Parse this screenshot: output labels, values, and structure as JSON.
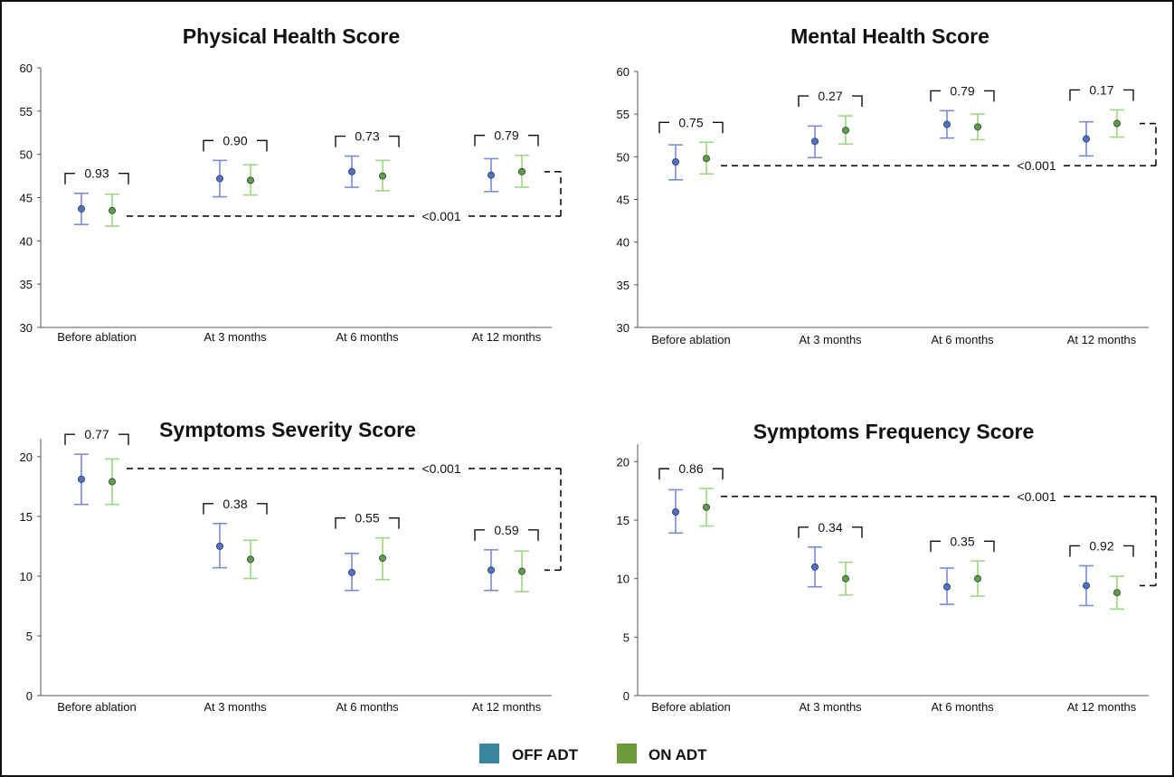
{
  "legend": [
    {
      "name": "OFF ADT",
      "color": "#3a86a0"
    },
    {
      "name": "ON ADT",
      "color": "#6e9a3c"
    }
  ],
  "colors": {
    "off_err": "#7a8cd8",
    "on_err": "#9fd683",
    "off_dot": "#4f72c4",
    "on_dot": "#5f9f3c",
    "axis": "#555555",
    "text": "#111111"
  },
  "chart_data": [
    {
      "type": "scatter",
      "title": "Physical Health Score",
      "categories": [
        "Before ablation",
        "At 3 months",
        "At 6 months",
        "At 12 months"
      ],
      "ylim": [
        30,
        60
      ],
      "yticks": [
        30,
        35,
        40,
        45,
        50,
        55,
        60
      ],
      "series": [
        {
          "name": "OFF ADT",
          "values": [
            43.7,
            47.2,
            48.0,
            47.6
          ],
          "lower": [
            41.9,
            45.1,
            46.2,
            45.7
          ],
          "upper": [
            45.5,
            49.3,
            49.8,
            49.5
          ]
        },
        {
          "name": "ON ADT",
          "values": [
            43.5,
            47.0,
            47.5,
            48.0
          ],
          "lower": [
            41.7,
            45.3,
            45.8,
            46.2
          ],
          "upper": [
            45.4,
            48.8,
            49.3,
            49.9
          ]
        }
      ],
      "pairwise_p": [
        "0.93",
        "0.90",
        "0.73",
        "0.79"
      ],
      "trend_p": "<0.001",
      "trend_from": 0,
      "trend_to": 3
    },
    {
      "type": "scatter",
      "title": "Mental Health Score",
      "categories": [
        "Before ablation",
        "At 3 months",
        "At 6 months",
        "At 12 months"
      ],
      "ylim": [
        30,
        60
      ],
      "yticks": [
        30,
        35,
        40,
        45,
        50,
        55,
        60
      ],
      "series": [
        {
          "name": "OFF ADT",
          "values": [
            49.4,
            51.8,
            53.8,
            52.1
          ],
          "lower": [
            47.3,
            49.9,
            52.2,
            50.1
          ],
          "upper": [
            51.4,
            53.6,
            55.4,
            54.1
          ]
        },
        {
          "name": "ON ADT",
          "values": [
            49.8,
            53.1,
            53.5,
            53.9
          ],
          "lower": [
            48.0,
            51.5,
            52.0,
            52.3
          ],
          "upper": [
            51.7,
            54.8,
            55.0,
            55.5
          ]
        }
      ],
      "pairwise_p": [
        "0.75",
        "0.27",
        "0.79",
        "0.17"
      ],
      "trend_p": "<0.001",
      "trend_from": 0,
      "trend_to": 3
    },
    {
      "type": "scatter",
      "title": "Symptoms Severity Score",
      "categories": [
        "Before ablation",
        "At 3 months",
        "At 6 months",
        "At 12 months"
      ],
      "ylim": [
        0,
        21.5
      ],
      "yticks": [
        0,
        5,
        10,
        15,
        20
      ],
      "series": [
        {
          "name": "OFF ADT",
          "values": [
            18.1,
            12.5,
            10.3,
            10.5
          ],
          "lower": [
            16.0,
            10.7,
            8.8,
            8.8
          ],
          "upper": [
            20.2,
            14.4,
            11.9,
            12.2
          ]
        },
        {
          "name": "ON ADT",
          "values": [
            17.9,
            11.4,
            11.5,
            10.4
          ],
          "lower": [
            16.0,
            9.8,
            9.7,
            8.7
          ],
          "upper": [
            19.8,
            13.0,
            13.2,
            12.1
          ]
        }
      ],
      "pairwise_p": [
        "0.77",
        "0.38",
        "0.55",
        "0.59"
      ],
      "trend_p": "<0.001",
      "trend_from": 0,
      "trend_to": 3
    },
    {
      "type": "scatter",
      "title": "Symptoms Frequency Score",
      "categories": [
        "Before ablation",
        "At 3 months",
        "At 6 months",
        "At 12 months"
      ],
      "ylim": [
        0,
        21.5
      ],
      "yticks": [
        0,
        5,
        10,
        15,
        20
      ],
      "series": [
        {
          "name": "OFF ADT",
          "values": [
            15.7,
            11.0,
            9.3,
            9.4
          ],
          "lower": [
            13.9,
            9.3,
            7.8,
            7.7
          ],
          "upper": [
            17.6,
            12.7,
            10.9,
            11.1
          ]
        },
        {
          "name": "ON ADT",
          "values": [
            16.1,
            10.0,
            10.0,
            8.8
          ],
          "lower": [
            14.5,
            8.6,
            8.5,
            7.4
          ],
          "upper": [
            17.7,
            11.4,
            11.5,
            10.2
          ]
        }
      ],
      "pairwise_p": [
        "0.86",
        "0.34",
        "0.35",
        "0.92"
      ],
      "trend_p": "<0.001",
      "trend_from": 0,
      "trend_to": 3
    }
  ]
}
